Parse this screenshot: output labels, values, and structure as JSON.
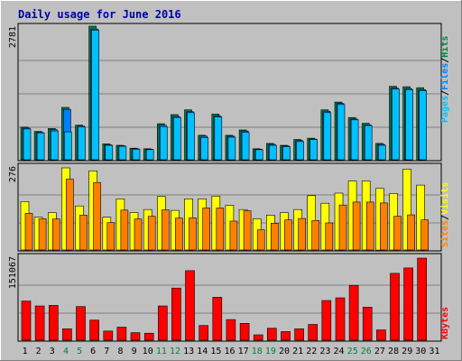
{
  "title": "Daily usage for June 2016",
  "colors": {
    "background": "#C0C0C0",
    "title": "#0000AA",
    "axis_text": "#000000",
    "weekend_day": "#008040",
    "hits_front": "#00C0FF",
    "hits_back": "#008040",
    "files": "#0080FF",
    "pages": "#00C0FF",
    "visits": "#FFFF00",
    "sites": "#FF8000",
    "kbytes": "#FF0000",
    "slash": "#000000",
    "grid": "#808080"
  },
  "labels": {
    "pages": "Pages",
    "files": "Files",
    "hits": "Hits",
    "visits": "Visits",
    "sites": "Sites",
    "kbytes": "KBytes",
    "slash": "/"
  },
  "chart_data": [
    {
      "type": "bar",
      "panel": "hits_files_pages",
      "ymax_label": "2781",
      "ylim": [
        0,
        2781
      ],
      "categories": [
        "1",
        "2",
        "3",
        "4",
        "5",
        "6",
        "7",
        "8",
        "9",
        "10",
        "11",
        "12",
        "13",
        "14",
        "15",
        "16",
        "17",
        "18",
        "19",
        "20",
        "21",
        "22",
        "23",
        "24",
        "25",
        "26",
        "27",
        "28",
        "29",
        "30",
        "31"
      ],
      "weekend_days": [
        "4",
        "5",
        "11",
        "12",
        "18",
        "19",
        "25",
        "26"
      ],
      "series": [
        {
          "name": "Hits",
          "values": [
            680,
            590,
            650,
            1090,
            720,
            2781,
            330,
            300,
            240,
            230,
            750,
            940,
            1040,
            510,
            950,
            510,
            620,
            230,
            340,
            300,
            420,
            450,
            1040,
            1200,
            880,
            760,
            340,
            1530,
            1520,
            1500,
            0
          ]
        },
        {
          "name": "Files",
          "values": [
            660,
            570,
            630,
            1050,
            700,
            2720,
            310,
            290,
            230,
            220,
            720,
            900,
            1000,
            490,
            910,
            490,
            600,
            220,
            320,
            290,
            400,
            430,
            1010,
            1170,
            850,
            730,
            320,
            1490,
            1480,
            1460,
            0
          ]
        },
        {
          "name": "Pages",
          "values": [
            640,
            560,
            600,
            580,
            680,
            2700,
            300,
            280,
            220,
            210,
            690,
            880,
            980,
            460,
            890,
            470,
            570,
            210,
            300,
            270,
            380,
            420,
            980,
            1150,
            830,
            710,
            300,
            1470,
            1460,
            1440,
            0
          ]
        }
      ]
    },
    {
      "type": "bar",
      "panel": "visits_sites",
      "ymax_label": "276",
      "ylim": [
        0,
        276
      ],
      "categories": [
        "1",
        "2",
        "3",
        "4",
        "5",
        "6",
        "7",
        "8",
        "9",
        "10",
        "11",
        "12",
        "13",
        "14",
        "15",
        "16",
        "17",
        "18",
        "19",
        "20",
        "21",
        "22",
        "23",
        "24",
        "25",
        "26",
        "27",
        "28",
        "29",
        "30",
        "31"
      ],
      "series": [
        {
          "name": "Visits",
          "values": [
            163,
            110,
            126,
            276,
            148,
            266,
            110,
            172,
            126,
            136,
            180,
            133,
            172,
            172,
            181,
            150,
            136,
            105,
            117,
            126,
            136,
            183,
            157,
            191,
            232,
            232,
            207,
            190,
            272,
            218,
            0
          ]
        },
        {
          "name": "Sites",
          "values": [
            123,
            105,
            104,
            238,
            117,
            227,
            92,
            134,
            104,
            113,
            135,
            107,
            108,
            141,
            141,
            97,
            132,
            68,
            90,
            101,
            106,
            99,
            91,
            151,
            161,
            161,
            158,
            113,
            118,
            101,
            0
          ]
        }
      ]
    },
    {
      "type": "bar",
      "panel": "kbytes",
      "ymax_label": "151067",
      "ylim": [
        0,
        151067
      ],
      "categories": [
        "1",
        "2",
        "3",
        "4",
        "5",
        "6",
        "7",
        "8",
        "9",
        "10",
        "11",
        "12",
        "13",
        "14",
        "15",
        "16",
        "17",
        "18",
        "19",
        "20",
        "21",
        "22",
        "23",
        "24",
        "25",
        "26",
        "27",
        "28",
        "29",
        "30",
        "31"
      ],
      "series": [
        {
          "name": "KBytes",
          "values": [
            72000,
            63000,
            64000,
            21000,
            62000,
            37000,
            17000,
            24000,
            14000,
            13000,
            63000,
            96000,
            128000,
            27000,
            79000,
            38000,
            31000,
            10000,
            22000,
            16000,
            21000,
            29000,
            73000,
            78000,
            101000,
            61000,
            19000,
            123000,
            133000,
            151067,
            0
          ]
        }
      ]
    }
  ]
}
